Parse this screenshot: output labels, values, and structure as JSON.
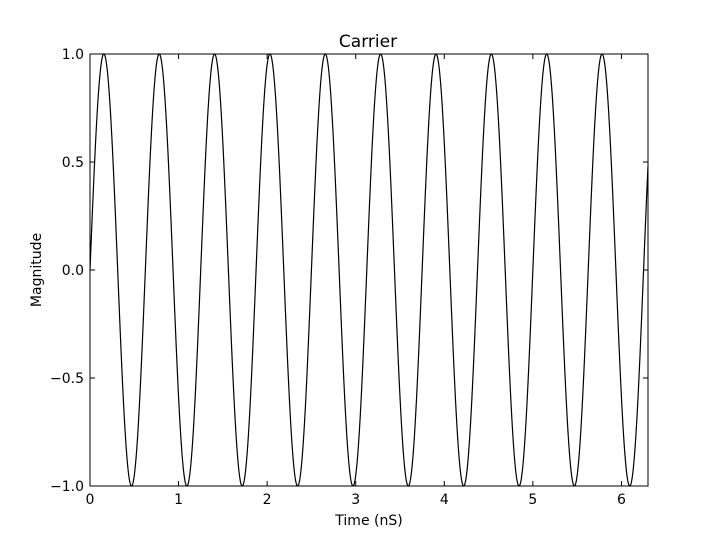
{
  "chart_data": {
    "type": "line",
    "title": "Carrier",
    "xlabel": "Time (nS)",
    "ylabel": "Magnitude",
    "xlim": [
      0,
      6.3
    ],
    "ylim": [
      -1.0,
      1.0
    ],
    "x_ticks": [
      0,
      1,
      2,
      3,
      4,
      5,
      6
    ],
    "x_tick_labels": [
      "0",
      "1",
      "2",
      "3",
      "4",
      "5",
      "6"
    ],
    "y_ticks": [
      1.0,
      0.5,
      0.0,
      -0.5,
      -1.0
    ],
    "y_tick_labels": [
      "1.0",
      "0.5",
      "0.0",
      "−0.5",
      "−1.0"
    ],
    "grid": false,
    "legend": "none",
    "series": [
      {
        "function": "sin",
        "amplitude": 1.0,
        "frequency_ghz": 1.6,
        "x_start": 0,
        "x_end": 6.3,
        "color": "#000000"
      }
    ]
  }
}
